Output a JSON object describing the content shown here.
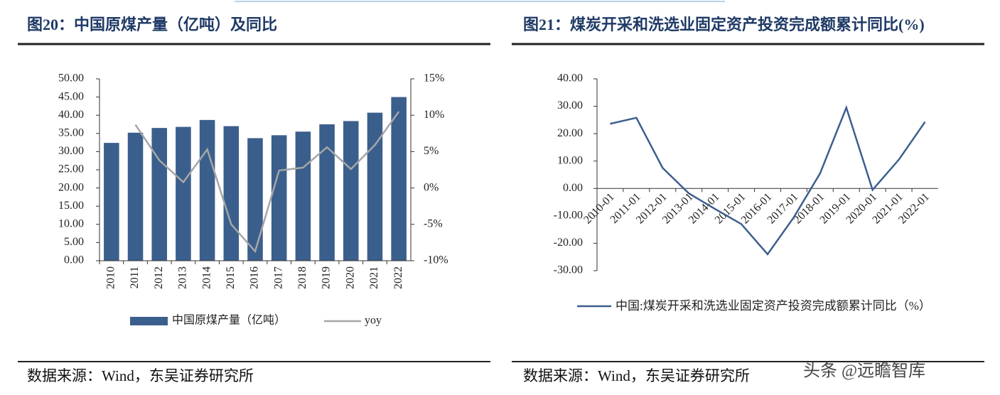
{
  "chart_data": [
    {
      "type": "bar",
      "title": "图20：中国原煤产量（亿吨）及同比",
      "source": "数据来源：Wind，东吴证券研究所",
      "categories": [
        "2010",
        "2011",
        "2012",
        "2013",
        "2014",
        "2015",
        "2016",
        "2017",
        "2018",
        "2019",
        "2020",
        "2021",
        "2022"
      ],
      "series": [
        {
          "name": "中国原煤产量（亿吨）",
          "color": "#3b5f8c",
          "values": [
            32.4,
            35.2,
            36.5,
            36.8,
            38.7,
            37.0,
            33.7,
            34.5,
            35.5,
            37.5,
            38.4,
            40.7,
            45.0
          ]
        },
        {
          "name": "yoy",
          "type": "line",
          "axis": "y2",
          "color": "#a6a6a6",
          "values": [
            null,
            8.7,
            3.8,
            0.8,
            5.3,
            -5.0,
            -8.7,
            2.4,
            2.8,
            5.6,
            2.6,
            5.9,
            10.5
          ]
        }
      ],
      "ylim": [
        0,
        50
      ],
      "yticks": [
        {
          "value": 0,
          "label": "0.00"
        },
        {
          "value": 5,
          "label": "5.00"
        },
        {
          "value": 10,
          "label": "10.00"
        },
        {
          "value": 15,
          "label": "15.00"
        },
        {
          "value": 20,
          "label": "20.00"
        },
        {
          "value": 25,
          "label": "25.00"
        },
        {
          "value": 30,
          "label": "30.00"
        },
        {
          "value": 35,
          "label": "35.00"
        },
        {
          "value": 40,
          "label": "40.00"
        },
        {
          "value": 45,
          "label": "45.00"
        },
        {
          "value": 50,
          "label": "50.00"
        }
      ],
      "y2lim": [
        -10,
        15
      ],
      "y2ticks": [
        {
          "value": -10,
          "label": "-10%"
        },
        {
          "value": -5,
          "label": "-5%"
        },
        {
          "value": 0,
          "label": "0%"
        },
        {
          "value": 5,
          "label": "5%"
        },
        {
          "value": 10,
          "label": "10%"
        },
        {
          "value": 15,
          "label": "15%"
        }
      ]
    },
    {
      "type": "line",
      "title": "图21：煤炭开采和洗选业固定资产投资完成额累计同比(%)",
      "source": "数据来源：Wind，东吴证券研究所",
      "categories": [
        "2010-01",
        "2011-01",
        "2012-01",
        "2013-01",
        "2014-01",
        "2015-01",
        "2016-01",
        "2017-01",
        "2018-01",
        "2019-01",
        "2020-01",
        "2021-01",
        "2022-01"
      ],
      "series": [
        {
          "name": "中国:煤炭开采和洗选业固定资产投资完成额累计同比（%）",
          "color": "#3d5f8e",
          "values": [
            23.6,
            25.8,
            7.5,
            -1.8,
            -7.5,
            -13.0,
            -24.0,
            -10.5,
            5.5,
            29.5,
            -0.5,
            10.5,
            24.3
          ]
        }
      ],
      "ylim": [
        -30,
        40
      ],
      "yticks": [
        {
          "value": -30,
          "label": "-30.00"
        },
        {
          "value": -20,
          "label": "-20.00"
        },
        {
          "value": -10,
          "label": "-10.00"
        },
        {
          "value": 0,
          "label": "0.00"
        },
        {
          "value": 10,
          "label": "10.00"
        },
        {
          "value": 20,
          "label": "20.00"
        },
        {
          "value": 30,
          "label": "30.00"
        },
        {
          "value": 40,
          "label": "40.00"
        }
      ]
    }
  ],
  "watermark": "头条 @远瞻智库"
}
